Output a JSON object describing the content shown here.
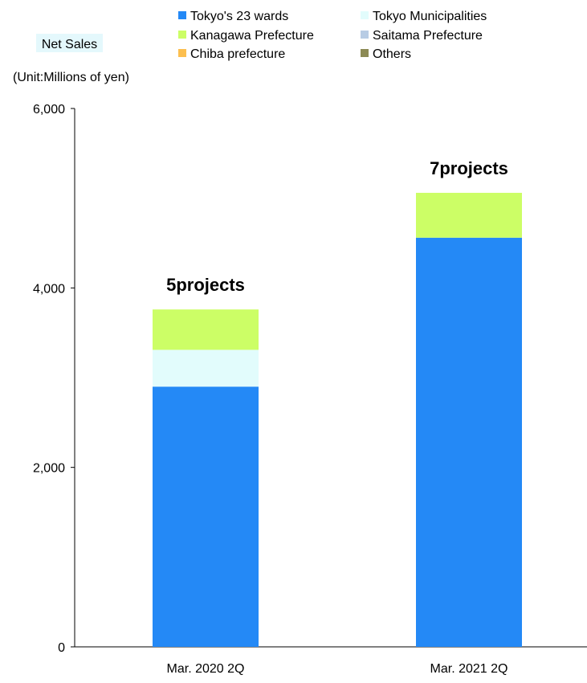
{
  "chart_data": {
    "type": "bar",
    "stacked": true,
    "title": "Net Sales",
    "unit_label": "(Unit:Millions of yen)",
    "categories": [
      "Mar. 2020 2Q",
      "Mar. 2021 2Q"
    ],
    "series": [
      {
        "name": "Tokyo's 23 wards",
        "color": "#2489f6",
        "values": [
          2900,
          4560
        ]
      },
      {
        "name": "Tokyo Municipalities",
        "color": "#e2fcfc",
        "values": [
          410,
          0
        ]
      },
      {
        "name": "Kanagawa Prefecture",
        "color": "#ccfe66",
        "values": [
          450,
          500
        ]
      },
      {
        "name": "Saitama Prefecture",
        "color": "#b8cce4",
        "values": [
          0,
          0
        ]
      },
      {
        "name": "Chiba prefecture",
        "color": "#fcbf4f",
        "values": [
          0,
          0
        ]
      },
      {
        "name": "Others",
        "color": "#8c8a55",
        "values": [
          0,
          0
        ]
      }
    ],
    "totals_labels": [
      "5projects",
      "7projects"
    ],
    "ylim": [
      0,
      6000
    ],
    "yticks": [
      0,
      2000,
      4000,
      6000
    ],
    "ytick_labels": [
      "0",
      "2,000",
      "4,000",
      "6,000"
    ],
    "grid": false,
    "legend_position": "top"
  }
}
